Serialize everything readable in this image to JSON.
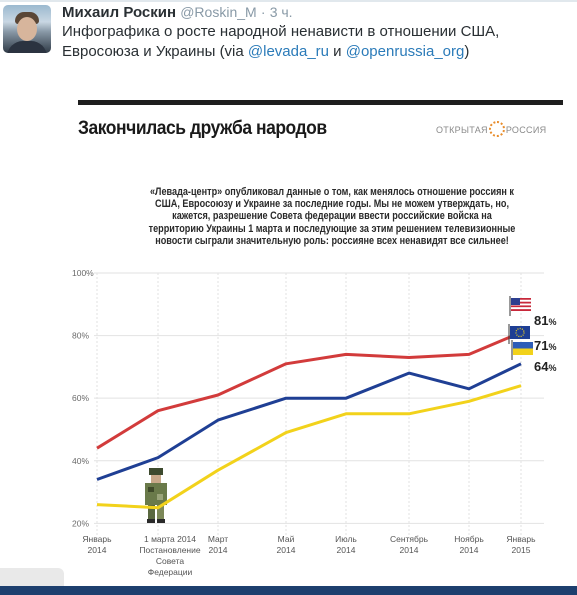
{
  "tweet": {
    "author_name": "Михаил Роскин",
    "handle": "@Roskin_M",
    "separator": "·",
    "time": "3 ч.",
    "text_main": "Инфографика о росте народной ненависти в отношении США, Евросоюза и Украины (via ",
    "mention1": "@levada_ru",
    "text_and": " и ",
    "mention2": "@openrussia_org",
    "text_end": ")"
  },
  "infographic": {
    "title": "Закончилась дружба народов",
    "logo_left": "ОТКРЫТАЯ",
    "logo_right": "РОССИЯ",
    "description": "«Левада-центр» опубликовал данные о том, как менялось отношение россиян к США, Евросоюзу и Украине за последние годы. Мы не можем утверждать, но, кажется, разрешение Совета федерации ввести российские войска на территорию Украины 1 марта и последующие за этим решением телевизионные новости сыграли значительную роль: россияне всех ненавидят все сильнее!"
  },
  "chart_data": {
    "type": "line",
    "x": [
      "Январь 2014",
      "1 марта 2014",
      "Март 2014",
      "Май 2014",
      "Июль 2014",
      "Сентябрь 2014",
      "Ноябрь 2014",
      "Январь 2015"
    ],
    "x_labels": [
      [
        "Январь",
        "2014"
      ],
      [
        "1 марта 2014",
        "Постановление",
        "Совета",
        "Федерации"
      ],
      [
        "Март",
        "2014"
      ],
      [
        "Май",
        "2014"
      ],
      [
        "Июль",
        "2014"
      ],
      [
        "Сентябрь",
        "2014"
      ],
      [
        "Ноябрь",
        "2014"
      ],
      [
        "Январь",
        "2015"
      ]
    ],
    "y_ticks": [
      "20%",
      "40%",
      "60%",
      "80%",
      "100%"
    ],
    "ylim": [
      15,
      100
    ],
    "series": [
      {
        "color": "#d23b3b",
        "flag": "usa",
        "end_label": "81",
        "end_unit": "%",
        "values": [
          44,
          56,
          61,
          71,
          74,
          73,
          74,
          81
        ]
      },
      {
        "color": "#1f3f94",
        "flag": "eu",
        "end_label": "71",
        "end_unit": "%",
        "values": [
          34,
          41,
          53,
          60,
          60,
          68,
          63,
          71
        ]
      },
      {
        "color": "#f2d21b",
        "flag": "ukraine",
        "end_label": "64",
        "end_unit": "%",
        "values": [
          26,
          25,
          37,
          49,
          55,
          55,
          59,
          64
        ]
      }
    ],
    "grid": true,
    "legend": "flags at line ends"
  }
}
